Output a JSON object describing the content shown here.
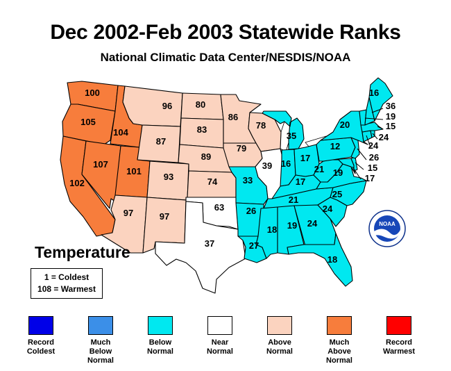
{
  "title": "Dec 2002-Feb 2003 Statewide Ranks",
  "subtitle": "National Climatic Data Center/NESDIS/NOAA",
  "parameter": "Temperature",
  "scale_note": [
    "1 = Coldest",
    "108 = Warmest"
  ],
  "logo_text": "NOAA",
  "colors": {
    "record_coldest": "#0000e8",
    "much_below": "#3b8fe8",
    "below": "#00e8f0",
    "near": "#ffffff",
    "above": "#fbd3bf",
    "much_above": "#f77d3c",
    "record_warmest": "#ff0000"
  },
  "legend": [
    {
      "key": "record_coldest",
      "lines": [
        "Record",
        "Coldest"
      ]
    },
    {
      "key": "much_below",
      "lines": [
        "Much",
        "Below",
        "Normal"
      ]
    },
    {
      "key": "below",
      "lines": [
        "Below",
        "Normal"
      ]
    },
    {
      "key": "near",
      "lines": [
        "Near",
        "Normal"
      ]
    },
    {
      "key": "above",
      "lines": [
        "Above",
        "Normal"
      ]
    },
    {
      "key": "much_above",
      "lines": [
        "Much",
        "Above",
        "Normal"
      ]
    },
    {
      "key": "record_warmest",
      "lines": [
        "Record",
        "Warmest"
      ]
    }
  ],
  "states": [
    {
      "id": "WA",
      "rank": "100",
      "cat": "much_above"
    },
    {
      "id": "OR",
      "rank": "105",
      "cat": "much_above"
    },
    {
      "id": "CA",
      "rank": "102",
      "cat": "much_above"
    },
    {
      "id": "ID",
      "rank": "104",
      "cat": "much_above"
    },
    {
      "id": "NV",
      "rank": "107",
      "cat": "much_above"
    },
    {
      "id": "UT",
      "rank": "101",
      "cat": "much_above"
    },
    {
      "id": "AZ",
      "rank": "97",
      "cat": "above"
    },
    {
      "id": "MT",
      "rank": "96",
      "cat": "above"
    },
    {
      "id": "WY",
      "rank": "87",
      "cat": "above"
    },
    {
      "id": "CO",
      "rank": "93",
      "cat": "above"
    },
    {
      "id": "NM",
      "rank": "97",
      "cat": "above"
    },
    {
      "id": "ND",
      "rank": "80",
      "cat": "above"
    },
    {
      "id": "SD",
      "rank": "83",
      "cat": "above"
    },
    {
      "id": "NE",
      "rank": "89",
      "cat": "above"
    },
    {
      "id": "KS",
      "rank": "74",
      "cat": "above"
    },
    {
      "id": "MN",
      "rank": "86",
      "cat": "above"
    },
    {
      "id": "IA",
      "rank": "79",
      "cat": "above"
    },
    {
      "id": "WI",
      "rank": "78",
      "cat": "above"
    },
    {
      "id": "OK",
      "rank": "63",
      "cat": "near"
    },
    {
      "id": "TX",
      "rank": "37",
      "cat": "near"
    },
    {
      "id": "IL",
      "rank": "39",
      "cat": "near"
    },
    {
      "id": "MO",
      "rank": "33",
      "cat": "below"
    },
    {
      "id": "AR",
      "rank": "26",
      "cat": "below"
    },
    {
      "id": "LA",
      "rank": "27",
      "cat": "below"
    },
    {
      "id": "MS",
      "rank": "18",
      "cat": "below"
    },
    {
      "id": "AL",
      "rank": "19",
      "cat": "below"
    },
    {
      "id": "GA",
      "rank": "24",
      "cat": "below"
    },
    {
      "id": "FL",
      "rank": "18",
      "cat": "below"
    },
    {
      "id": "SC",
      "rank": "24",
      "cat": "below"
    },
    {
      "id": "NC",
      "rank": "25",
      "cat": "below"
    },
    {
      "id": "TN",
      "rank": "21",
      "cat": "below"
    },
    {
      "id": "KY",
      "rank": "17",
      "cat": "below"
    },
    {
      "id": "VA",
      "rank": "19",
      "cat": "below"
    },
    {
      "id": "WV",
      "rank": "21",
      "cat": "below"
    },
    {
      "id": "IN",
      "rank": "16",
      "cat": "below"
    },
    {
      "id": "OH",
      "rank": "17",
      "cat": "below"
    },
    {
      "id": "MI",
      "rank": "35",
      "cat": "below"
    },
    {
      "id": "PA",
      "rank": "12",
      "cat": "below"
    },
    {
      "id": "NY",
      "rank": "20",
      "cat": "below"
    },
    {
      "id": "ME",
      "rank": "16",
      "cat": "below"
    },
    {
      "id": "NH",
      "rank": "36",
      "cat": "below"
    },
    {
      "id": "VT",
      "rank": "19",
      "cat": "below"
    },
    {
      "id": "MA",
      "rank": "15",
      "cat": "below"
    },
    {
      "id": "RI",
      "rank": "24",
      "cat": "below"
    },
    {
      "id": "CT",
      "rank": "24",
      "cat": "below"
    },
    {
      "id": "NJ",
      "rank": "26",
      "cat": "below"
    },
    {
      "id": "DE",
      "rank": "15",
      "cat": "below"
    },
    {
      "id": "MD",
      "rank": "17",
      "cat": "below"
    }
  ]
}
